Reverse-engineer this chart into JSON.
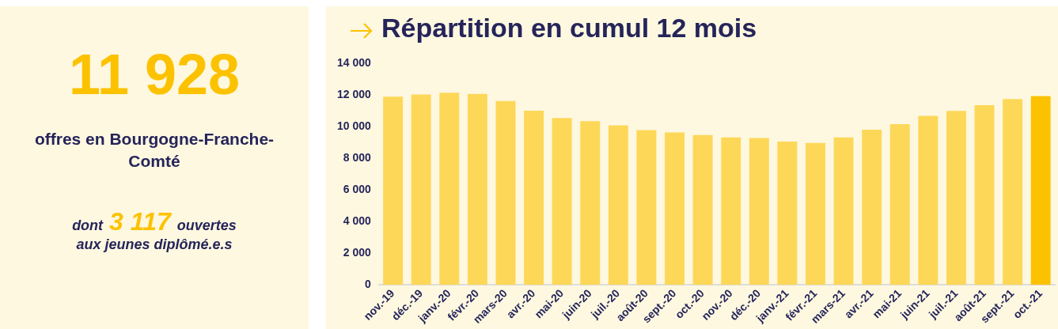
{
  "chart_data": [
    {
      "type": "other",
      "title": "11 928",
      "subtitle": "offres en Bourgogne-Franche-Comté",
      "annotations": [
        "dont",
        "3 117",
        "ouvertes",
        "aux jeunes diplômé.e.s"
      ]
    },
    {
      "type": "bar",
      "title": "Répartition en cumul 12 mois",
      "categories": [
        "nov.-19",
        "déc.-19",
        "janv.-20",
        "févr.-20",
        "mars-20",
        "avr.-20",
        "mai-20",
        "juin-20",
        "juil.-20",
        "août-20",
        "sept.-20",
        "oct.-20",
        "nov.-20",
        "déc.-20",
        "janv.-21",
        "févr.-21",
        "mars-21",
        "avr.-21",
        "mai-21",
        "juin-21",
        "juil.-21",
        "août-21",
        "sept.-21",
        "oct.-21"
      ],
      "values": [
        11900,
        12040,
        12160,
        12080,
        11630,
        11020,
        10550,
        10350,
        10090,
        9790,
        9640,
        9480,
        9330,
        9290,
        9070,
        8980,
        9330,
        9810,
        10170,
        10690,
        11000,
        11370,
        11760,
        11940
      ],
      "colors": [
        "#fdd757",
        "#fdd757",
        "#fdd757",
        "#fdd757",
        "#fdd757",
        "#fdd757",
        "#fdd757",
        "#fdd757",
        "#fdd757",
        "#fdd757",
        "#fdd757",
        "#fdd757",
        "#fdd757",
        "#fdd757",
        "#fdd757",
        "#fdd757",
        "#fdd757",
        "#fdd757",
        "#fdd757",
        "#fdd757",
        "#fdd757",
        "#fdd757",
        "#fdd757",
        "#fcc200"
      ],
      "ylim": [
        0,
        14000
      ],
      "yticks": [
        {
          "value": 0,
          "label": "0"
        },
        {
          "value": 2000,
          "label": "2 000"
        },
        {
          "value": 4000,
          "label": "4 000"
        },
        {
          "value": 6000,
          "label": "6 000"
        },
        {
          "value": 8000,
          "label": "8 000"
        },
        {
          "value": 10000,
          "label": "10 000"
        },
        {
          "value": 12000,
          "label": "12 000"
        },
        {
          "value": 14000,
          "label": "14 000"
        }
      ],
      "grid": false,
      "legend": false
    }
  ]
}
